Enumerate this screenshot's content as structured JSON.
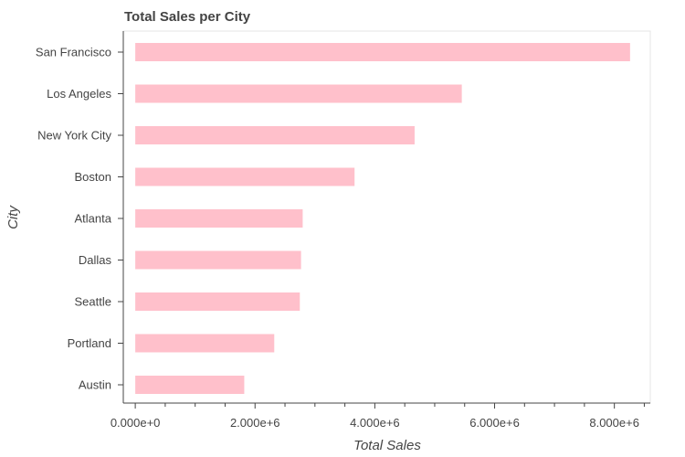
{
  "chart_data": {
    "type": "bar",
    "orientation": "horizontal",
    "title": "Total Sales per City",
    "xlabel": "Total Sales",
    "ylabel": "City",
    "categories": [
      "San Francisco",
      "Los Angeles",
      "New York City",
      "Boston",
      "Atlanta",
      "Dallas",
      "Seattle",
      "Portland",
      "Austin"
    ],
    "values": [
      8262204,
      5452571,
      4664317,
      3661642,
      2795499,
      2767975,
      2747755,
      2320491,
      1819582
    ],
    "xlim": [
      -200000,
      8600000
    ],
    "xticks": [
      0,
      2000000,
      4000000,
      6000000,
      8000000
    ],
    "xtick_labels": [
      "0.000e+0",
      "2.000e+6",
      "4.000e+6",
      "6.000e+6",
      "8.000e+6"
    ],
    "bar_color": "#ffc0cb",
    "grid": false,
    "legend": "none"
  }
}
